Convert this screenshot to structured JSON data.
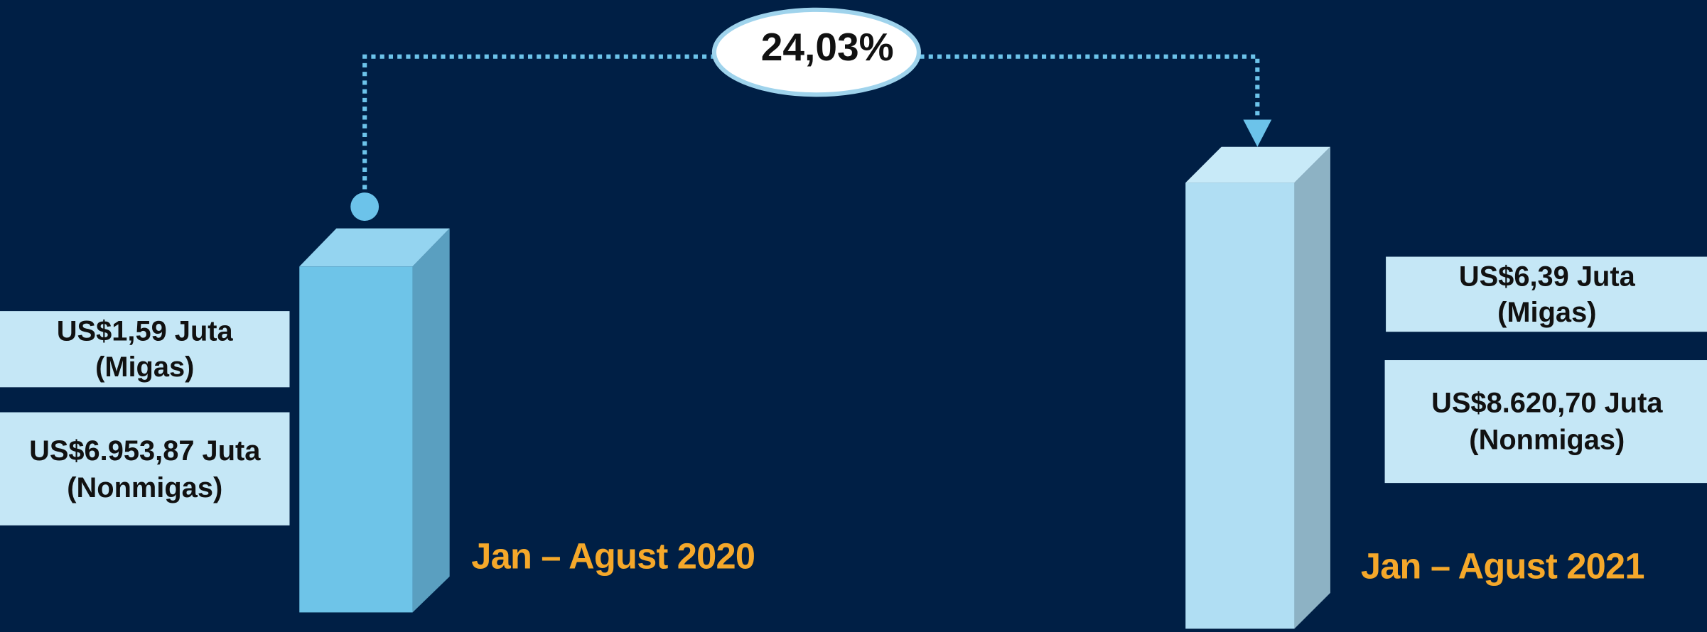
{
  "badge": "24,03%",
  "periods": [
    {
      "label": "Jan – Agust 2020",
      "migas": [
        "US$1,59 Juta",
        "(Migas)"
      ],
      "nonmigas": [
        "US$6.953,87 Juta",
        "(Nonmigas)"
      ]
    },
    {
      "label": "Jan – Agust 2021",
      "migas": [
        "US$6,39 Juta",
        "(Migas)"
      ],
      "nonmigas": [
        "US$8.620,70 Juta",
        "(Nonmigas)"
      ]
    }
  ]
}
